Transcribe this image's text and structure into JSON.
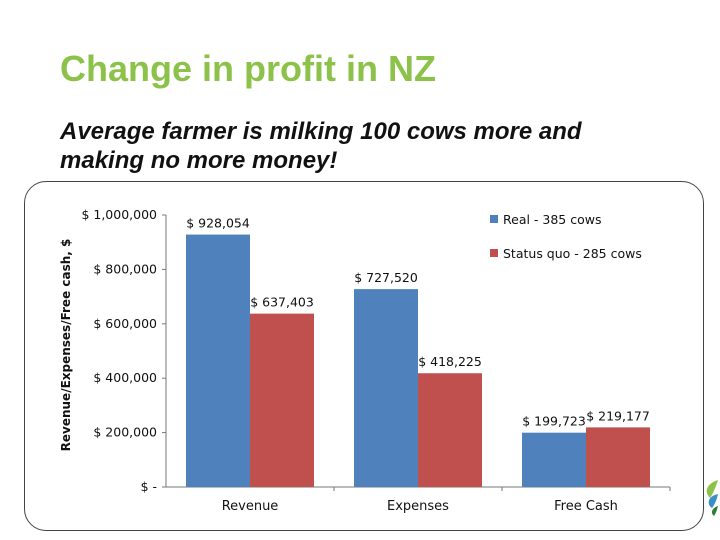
{
  "slide": {
    "title": "Change in profit in NZ",
    "subtitle": "Average farmer is milking 100 cows more and making no more money!"
  },
  "colors": {
    "title": "#8cc24a",
    "series_real": "#4f81bd",
    "series_status_quo": "#c0504d"
  },
  "chart_data": {
    "type": "bar",
    "title": "",
    "xlabel": "",
    "ylabel": "Revenue/Expenses/Free cash, $",
    "categories": [
      "Revenue",
      "Expenses",
      "Free Cash"
    ],
    "series": [
      {
        "name": "Real - 385 cows",
        "values": [
          928054,
          727520,
          199723
        ],
        "labels": [
          "$ 928,054",
          "$ 727,520",
          "$ 199,723"
        ]
      },
      {
        "name": "Status quo - 285 cows",
        "values": [
          637403,
          418225,
          219177
        ],
        "labels": [
          "$ 637,403",
          "$ 418,225",
          "$ 219,177"
        ]
      }
    ],
    "ylim": [
      0,
      1000000
    ],
    "yticks": [
      0,
      200000,
      400000,
      600000,
      800000,
      1000000
    ],
    "ytick_labels": [
      "$ -",
      "$ 200,000",
      "$ 400,000",
      "$ 600,000",
      "$ 800,000",
      "$ 1,000,000"
    ],
    "legend_position": "top-right",
    "grid": false
  }
}
